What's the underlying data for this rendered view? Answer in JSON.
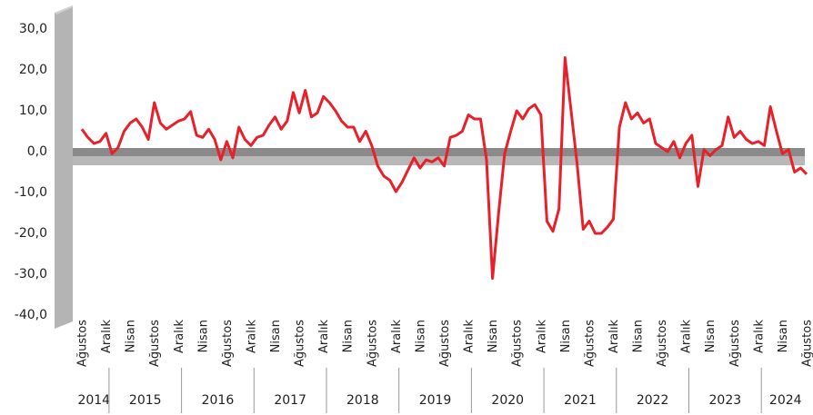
{
  "chart_data": {
    "type": "line",
    "categories": [
      "Ağustos",
      null,
      null,
      null,
      "Aralık",
      null,
      null,
      null,
      "Nisan",
      null,
      null,
      null,
      "Ağustos",
      null,
      null,
      null,
      "Aralık",
      null,
      null,
      null,
      "Nisan",
      null,
      null,
      null,
      "Ağustos",
      null,
      null,
      null,
      "Aralık",
      null,
      null,
      null,
      "Nisan",
      null,
      null,
      null,
      "Ağustos",
      null,
      null,
      null,
      "Aralık",
      null,
      null,
      null,
      "Nisan",
      null,
      null,
      null,
      "Ağustos",
      null,
      null,
      null,
      "Aralık",
      null,
      null,
      null,
      "Nisan",
      null,
      null,
      null,
      "Ağustos",
      null,
      null,
      null,
      "Aralık",
      null,
      null,
      null,
      "Nisan",
      null,
      null,
      null,
      "Ağustos",
      null,
      null,
      null,
      "Aralık",
      null,
      null,
      null,
      "Nisan",
      null,
      null,
      null,
      "Ağustos",
      null,
      null,
      null,
      "Aralık",
      null,
      null,
      null,
      "Nisan",
      null,
      null,
      null,
      "Ağustos",
      null,
      null,
      null,
      "Aralık",
      null,
      null,
      null,
      "Nisan",
      null,
      null,
      null,
      "Ağustos",
      null,
      null,
      null,
      "Aralık",
      null,
      null,
      null,
      "Nisan",
      null,
      null,
      null,
      "Ağustos"
    ],
    "years": [
      "2014",
      "2015",
      "2016",
      "2017",
      "2018",
      "2019",
      "2020",
      "2021",
      "2022",
      "2023",
      "2024"
    ],
    "series": [
      {
        "color": "#e8202a",
        "values": [
          5.5,
          3.5,
          2,
          2.5,
          4.5,
          -0.5,
          1,
          5,
          7,
          8,
          6,
          3,
          12,
          7,
          5.5,
          6.5,
          7.5,
          8,
          9.8,
          4,
          3.5,
          5.5,
          3,
          -2,
          2.5,
          -1.5,
          6,
          3,
          1.5,
          3.5,
          4,
          6.5,
          8.5,
          5.5,
          7.5,
          14.5,
          9.5,
          15,
          8.5,
          9.5,
          13.5,
          12,
          10,
          7.5,
          6,
          6,
          2.5,
          5,
          1.5,
          -3.5,
          -6,
          -7,
          -9.8,
          -7.5,
          -4.5,
          -1.5,
          -4,
          -2,
          -2.5,
          -1.5,
          -3.5,
          3.5,
          4,
          5,
          9,
          8,
          8,
          -2,
          -31,
          -15,
          -0.5,
          5,
          10,
          8,
          10.5,
          11.5,
          9,
          -17,
          -19.5,
          -14,
          23,
          10,
          -3,
          -19,
          -17,
          -20,
          -20,
          -18.5,
          -16.5,
          6,
          12,
          8,
          9.5,
          7,
          8,
          2,
          1,
          0,
          2.5,
          -1.5,
          2,
          4,
          -8.5,
          0.5,
          -1,
          0.5,
          1.5,
          8.5,
          3.5,
          5,
          3,
          2,
          2.5,
          1.5,
          11,
          5,
          -0.5,
          0.5,
          -5,
          -4,
          -5.5
        ]
      }
    ],
    "ylim": [
      -40,
      30
    ],
    "yticks": [
      {
        "value": 30,
        "label": "30,0"
      },
      {
        "value": 20,
        "label": "20,0"
      },
      {
        "value": 10,
        "label": "10,0"
      },
      {
        "value": 0,
        "label": "0,0"
      },
      {
        "value": -10,
        "label": "-10,0"
      },
      {
        "value": -20,
        "label": "-20,0"
      },
      {
        "value": -30,
        "label": "-30,0"
      },
      {
        "value": -40,
        "label": "-40,0"
      }
    ]
  }
}
